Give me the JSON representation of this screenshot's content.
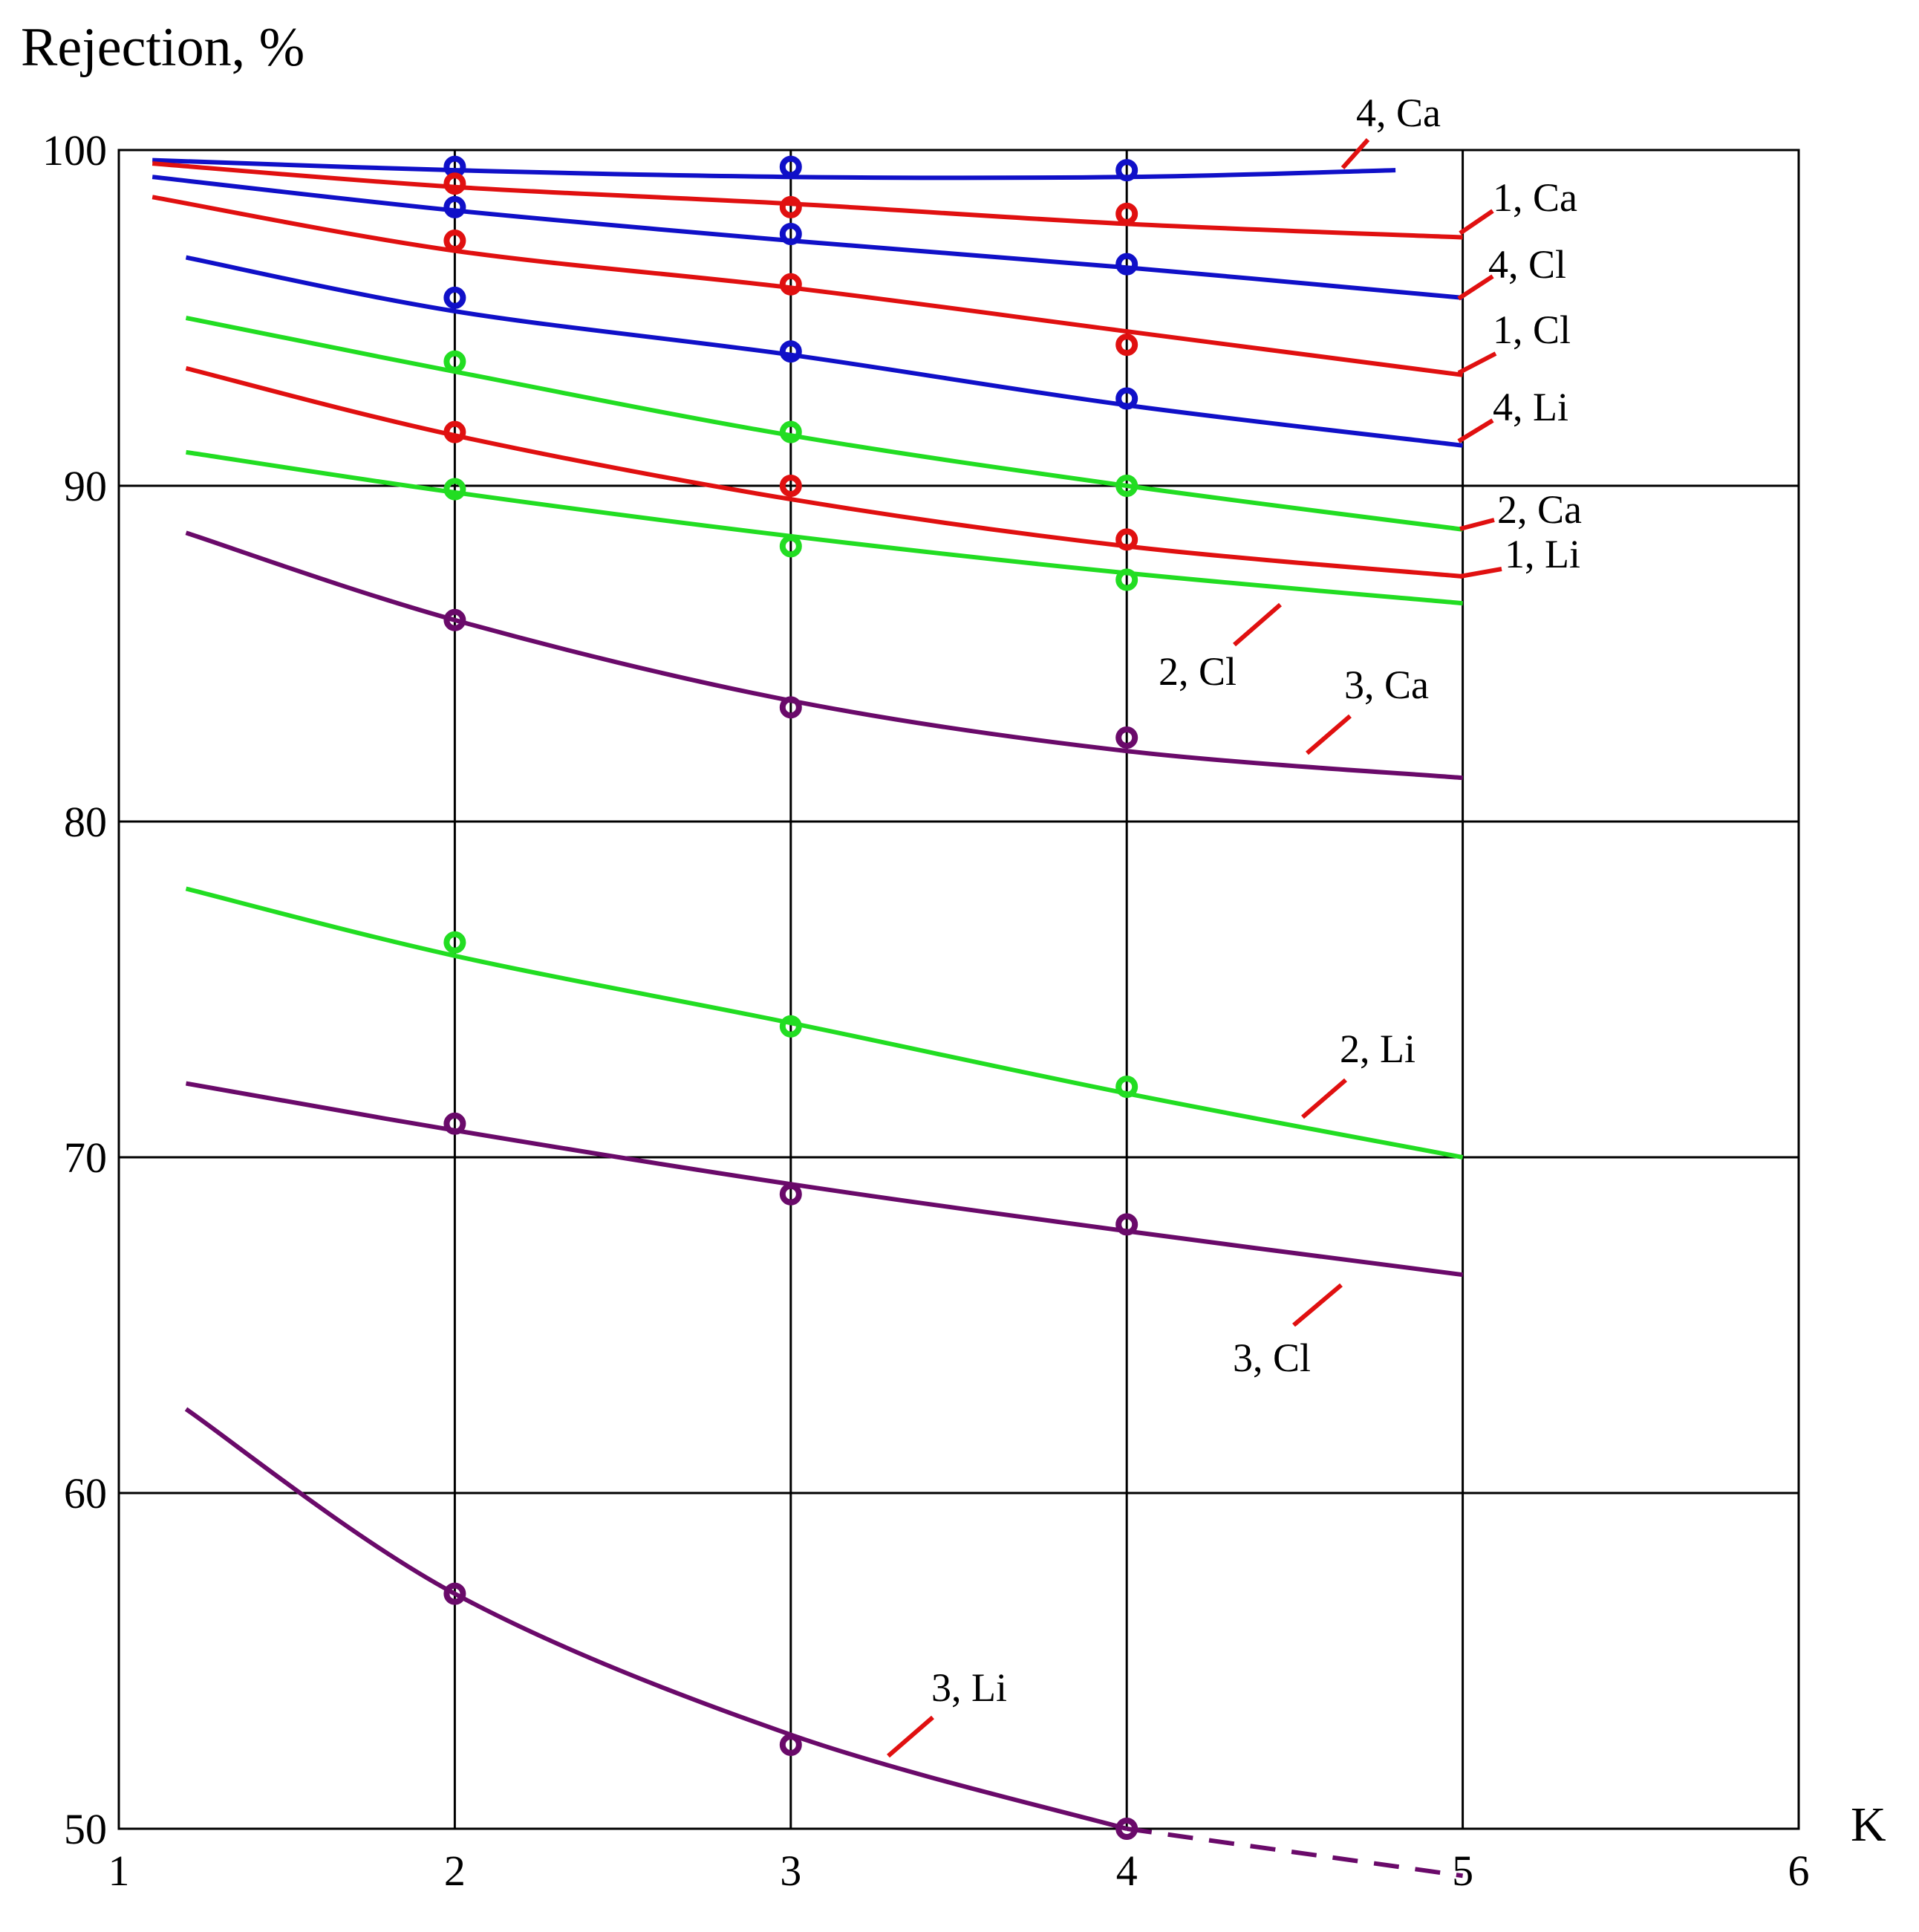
{
  "chart_data": {
    "type": "line",
    "title": "",
    "ylabel": "Rejection, %",
    "xlabel": "K",
    "xlim": [
      1,
      6
    ],
    "ylim": [
      50,
      100
    ],
    "xticks": [
      "1",
      "2",
      "3",
      "4",
      "5",
      "6"
    ],
    "yticks": [
      "50",
      "60",
      "70",
      "80",
      "90",
      "100"
    ],
    "grid": true,
    "legend": "none (curves labelled directly)",
    "series": [
      {
        "name": "4, Ca",
        "color": "#1010c8",
        "curve": [
          [
            1.1,
            99.7
          ],
          [
            2,
            99.4
          ],
          [
            3,
            99.2
          ],
          [
            4,
            99.2
          ],
          [
            4.8,
            99.4
          ]
        ],
        "points": [
          [
            2,
            99.5
          ],
          [
            3,
            99.5
          ],
          [
            4,
            99.4
          ]
        ]
      },
      {
        "name": "1, Ca",
        "color": "#e01010",
        "curve": [
          [
            1.1,
            99.6
          ],
          [
            2,
            98.9
          ],
          [
            3,
            98.4
          ],
          [
            4,
            97.8
          ],
          [
            5,
            97.4
          ]
        ],
        "points": [
          [
            2,
            99.0
          ],
          [
            3,
            98.3
          ],
          [
            4,
            98.1
          ]
        ]
      },
      {
        "name": "4, Cl",
        "color": "#1010c8",
        "curve": [
          [
            1.1,
            99.2
          ],
          [
            2,
            98.2
          ],
          [
            3,
            97.3
          ],
          [
            4,
            96.5
          ],
          [
            5,
            95.6
          ]
        ],
        "points": [
          [
            2,
            98.3
          ],
          [
            3,
            97.5
          ],
          [
            4,
            96.6
          ]
        ]
      },
      {
        "name": "1, Cl",
        "color": "#e01010",
        "curve": [
          [
            1.1,
            98.6
          ],
          [
            2,
            97.0
          ],
          [
            3,
            95.9
          ],
          [
            4,
            94.6
          ],
          [
            5,
            93.3
          ]
        ],
        "points": [
          [
            2,
            97.3
          ],
          [
            3,
            96.0
          ],
          [
            4,
            94.2
          ]
        ]
      },
      {
        "name": "4, Li",
        "color": "#1010c8",
        "curve": [
          [
            1.2,
            96.8
          ],
          [
            2,
            95.2
          ],
          [
            3,
            93.9
          ],
          [
            4,
            92.4
          ],
          [
            5,
            91.2
          ]
        ],
        "points": [
          [
            2,
            95.6
          ],
          [
            3,
            94.0
          ],
          [
            4,
            92.6
          ]
        ]
      },
      {
        "name": "2, Ca",
        "color": "#22dd22",
        "curve": [
          [
            1.2,
            95.0
          ],
          [
            2,
            93.4
          ],
          [
            3,
            91.5
          ],
          [
            4,
            90.0
          ],
          [
            5,
            88.7
          ]
        ],
        "points": [
          [
            2,
            93.7
          ],
          [
            3,
            91.6
          ],
          [
            4,
            90.0
          ]
        ]
      },
      {
        "name": "1, Li",
        "color": "#e01010",
        "curve": [
          [
            1.2,
            93.5
          ],
          [
            2,
            91.5
          ],
          [
            3,
            89.6
          ],
          [
            4,
            88.2
          ],
          [
            5,
            87.3
          ]
        ],
        "points": [
          [
            2,
            91.6
          ],
          [
            3,
            90.0
          ],
          [
            4,
            88.4
          ]
        ]
      },
      {
        "name": "2, Cl",
        "color": "#22dd22",
        "curve": [
          [
            1.2,
            91.0
          ],
          [
            2,
            89.8
          ],
          [
            3,
            88.5
          ],
          [
            4,
            87.4
          ],
          [
            5,
            86.5
          ]
        ],
        "points": [
          [
            2,
            89.9
          ],
          [
            3,
            88.2
          ],
          [
            4,
            87.2
          ]
        ]
      },
      {
        "name": "3, Ca",
        "color": "#6a0a6a",
        "curve": [
          [
            1.2,
            88.6
          ],
          [
            2,
            86.0
          ],
          [
            3,
            83.6
          ],
          [
            4,
            82.1
          ],
          [
            5,
            81.3
          ]
        ],
        "points": [
          [
            2,
            86.0
          ],
          [
            3,
            83.4
          ],
          [
            4,
            82.5
          ]
        ]
      },
      {
        "name": "2, Li",
        "color": "#22dd22",
        "curve": [
          [
            1.2,
            78.0
          ],
          [
            2,
            76.0
          ],
          [
            3,
            74.0
          ],
          [
            4,
            71.9
          ],
          [
            5,
            70.0
          ]
        ],
        "points": [
          [
            2,
            76.4
          ],
          [
            3,
            73.9
          ],
          [
            4,
            72.1
          ]
        ]
      },
      {
        "name": "3, Cl",
        "color": "#6a0a6a",
        "curve": [
          [
            1.2,
            72.2
          ],
          [
            2,
            70.8
          ],
          [
            3,
            69.2
          ],
          [
            4,
            67.8
          ],
          [
            5,
            66.5
          ]
        ],
        "points": [
          [
            2,
            71.0
          ],
          [
            3,
            68.9
          ],
          [
            4,
            68.0
          ]
        ]
      },
      {
        "name": "3, Li",
        "color": "#6a0a6a",
        "curve": [
          [
            1.2,
            62.5
          ],
          [
            2,
            57.0
          ],
          [
            3,
            52.8
          ],
          [
            4,
            50.0
          ]
        ],
        "dashed_curve": [
          [
            4,
            50.0
          ],
          [
            4.5,
            49.3
          ],
          [
            5,
            48.6
          ]
        ],
        "points": [
          [
            2,
            57.0
          ],
          [
            3,
            52.5
          ],
          [
            4,
            50.0
          ]
        ]
      }
    ],
    "annotations": [
      {
        "series": "4, Ca",
        "text": "4, Ca"
      },
      {
        "series": "1, Ca",
        "text": "1, Ca"
      },
      {
        "series": "4, Cl",
        "text": "4, Cl"
      },
      {
        "series": "1, Cl",
        "text": "1, Cl"
      },
      {
        "series": "4, Li",
        "text": "4, Li"
      },
      {
        "series": "2, Ca",
        "text": "2, Ca"
      },
      {
        "series": "1, Li",
        "text": "1, Li"
      },
      {
        "series": "2, Cl",
        "text": "2, Cl"
      },
      {
        "series": "3, Ca",
        "text": "3, Ca"
      },
      {
        "series": "2, Li",
        "text": "2, Li"
      },
      {
        "series": "3, Cl",
        "text": "3, Cl"
      },
      {
        "series": "3, Li",
        "text": "3, Li"
      }
    ],
    "pointer_color": "#e01010"
  }
}
